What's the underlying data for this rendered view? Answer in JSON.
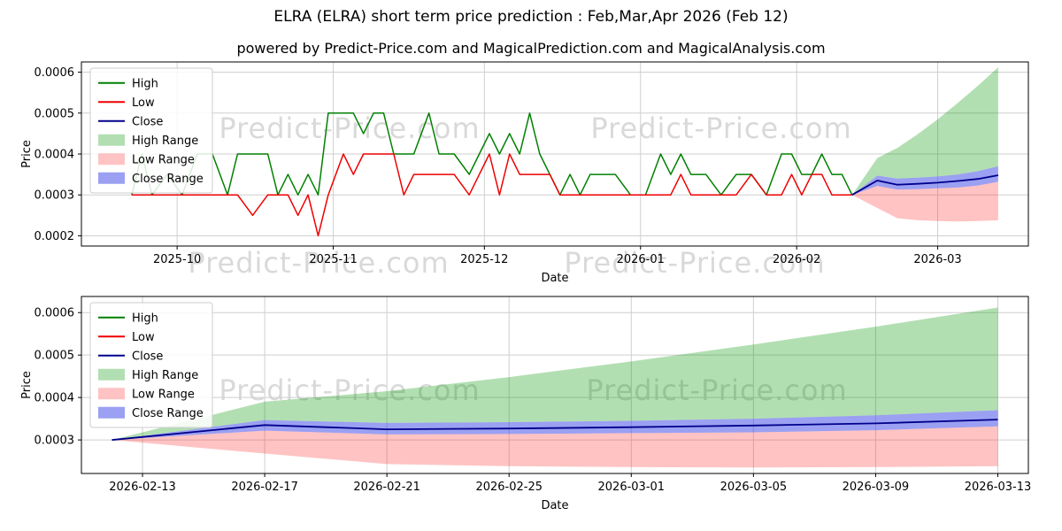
{
  "chart_data": {
    "type": "line",
    "title": "ELRA (ELRA) short term price prediction : Feb,Mar,Apr 2026 (Feb 12)",
    "subtitle": "powered by Predict-Price.com and MagicalPrediction.com and MagicalAnalysis.com",
    "watermark": "Predict-Price.com",
    "colors": {
      "high": "#008000",
      "low": "#ee0000",
      "close": "#00008b",
      "high_range": "rgba(0,150,0,0.30)",
      "low_range": "rgba(255,40,40,0.28)",
      "close_range": "rgba(55,65,230,0.50)",
      "grid": "#cfcfcf",
      "watermark": "rgba(128,128,128,0.30)"
    },
    "legend": [
      {
        "label": "High",
        "swatch": "line",
        "color_key": "high"
      },
      {
        "label": "Low",
        "swatch": "line",
        "color_key": "low"
      },
      {
        "label": "Close",
        "swatch": "line",
        "color_key": "close"
      },
      {
        "label": "High Range",
        "swatch": "patch",
        "color_key": "high_range"
      },
      {
        "label": "Low Range",
        "swatch": "patch",
        "color_key": "low_range"
      },
      {
        "label": "Close Range",
        "swatch": "patch",
        "color_key": "close_range"
      }
    ],
    "history": {
      "dates": [
        "2025-09-22",
        "2025-09-23",
        "2025-09-24",
        "2025-09-26",
        "2025-09-29",
        "2025-10-02",
        "2025-10-05",
        "2025-10-08",
        "2025-10-11",
        "2025-10-13",
        "2025-10-16",
        "2025-10-19",
        "2025-10-21",
        "2025-10-23",
        "2025-10-25",
        "2025-10-27",
        "2025-10-29",
        "2025-10-31",
        "2025-11-03",
        "2025-11-05",
        "2025-11-07",
        "2025-11-09",
        "2025-11-11",
        "2025-11-13",
        "2025-11-15",
        "2025-11-17",
        "2025-11-20",
        "2025-11-22",
        "2025-11-25",
        "2025-11-28",
        "2025-11-30",
        "2025-12-02",
        "2025-12-04",
        "2025-12-06",
        "2025-12-08",
        "2025-12-10",
        "2025-12-12",
        "2025-12-14",
        "2025-12-16",
        "2025-12-18",
        "2025-12-20",
        "2025-12-22",
        "2025-12-24",
        "2025-12-27",
        "2025-12-30",
        "2026-01-02",
        "2026-01-05",
        "2026-01-07",
        "2026-01-09",
        "2026-01-11",
        "2026-01-14",
        "2026-01-17",
        "2026-01-20",
        "2026-01-23",
        "2026-01-26",
        "2026-01-29",
        "2026-01-31",
        "2026-02-02",
        "2026-02-04",
        "2026-02-06",
        "2026-02-08",
        "2026-02-10",
        "2026-02-12"
      ],
      "high": [
        0.0003,
        0.00035,
        0.0004,
        0.0003,
        0.00035,
        0.0003,
        0.0004,
        0.0004,
        0.0003,
        0.0004,
        0.0004,
        0.0004,
        0.0003,
        0.00035,
        0.0003,
        0.00035,
        0.0003,
        0.0005,
        0.0005,
        0.0005,
        0.00045,
        0.0005,
        0.0005,
        0.0004,
        0.0004,
        0.0004,
        0.0005,
        0.0004,
        0.0004,
        0.00035,
        0.0004,
        0.00045,
        0.0004,
        0.00045,
        0.0004,
        0.0005,
        0.0004,
        0.00035,
        0.0003,
        0.00035,
        0.0003,
        0.00035,
        0.00035,
        0.00035,
        0.0003,
        0.0003,
        0.0004,
        0.00035,
        0.0004,
        0.00035,
        0.00035,
        0.0003,
        0.00035,
        0.00035,
        0.0003,
        0.0004,
        0.0004,
        0.00035,
        0.00035,
        0.0004,
        0.00035,
        0.00035,
        0.0003
      ],
      "low": [
        0.0003,
        0.0003,
        0.0003,
        0.0003,
        0.0003,
        0.0003,
        0.0003,
        0.0003,
        0.0003,
        0.0003,
        0.00025,
        0.0003,
        0.0003,
        0.0003,
        0.00025,
        0.0003,
        0.0002,
        0.0003,
        0.0004,
        0.00035,
        0.0004,
        0.0004,
        0.0004,
        0.0004,
        0.0003,
        0.00035,
        0.00035,
        0.00035,
        0.00035,
        0.0003,
        0.00035,
        0.0004,
        0.0003,
        0.0004,
        0.00035,
        0.00035,
        0.00035,
        0.00035,
        0.0003,
        0.0003,
        0.0003,
        0.0003,
        0.0003,
        0.0003,
        0.0003,
        0.0003,
        0.0003,
        0.0003,
        0.00035,
        0.0003,
        0.0003,
        0.0003,
        0.0003,
        0.00035,
        0.0003,
        0.0003,
        0.00035,
        0.0003,
        0.00035,
        0.00035,
        0.0003,
        0.0003,
        0.0003
      ]
    },
    "prediction": {
      "dates": [
        "2026-02-12",
        "2026-02-17",
        "2026-02-21",
        "2026-02-25",
        "2026-03-01",
        "2026-03-05",
        "2026-03-09",
        "2026-03-13"
      ],
      "close": [
        0.0003,
        0.000335,
        0.000325,
        0.000327,
        0.00033,
        0.000334,
        0.000339,
        0.000348
      ],
      "close_upper": [
        0.0003,
        0.000347,
        0.00034,
        0.000342,
        0.000345,
        0.00035,
        0.000358,
        0.00037
      ],
      "close_lower": [
        0.0003,
        0.000322,
        0.000313,
        0.000314,
        0.000316,
        0.000318,
        0.000323,
        0.000332
      ],
      "high_upper": [
        0.0003,
        0.00039,
        0.000415,
        0.000448,
        0.000485,
        0.000525,
        0.000567,
        0.000612
      ],
      "low_lower": [
        0.0003,
        0.000268,
        0.000243,
        0.000238,
        0.000236,
        0.000235,
        0.000236,
        0.000238
      ]
    },
    "top_chart": {
      "xlabel": "Date",
      "ylabel": "Price",
      "xlim": [
        "2025-09-12",
        "2026-03-19"
      ],
      "ylim": [
        0.000175,
        0.000625
      ],
      "xticks": [
        {
          "value": "2025-10-01",
          "label": "2025-10"
        },
        {
          "value": "2025-11-01",
          "label": "2025-11"
        },
        {
          "value": "2025-12-01",
          "label": "2025-12"
        },
        {
          "value": "2026-01-01",
          "label": "2026-01"
        },
        {
          "value": "2026-02-01",
          "label": "2026-02"
        },
        {
          "value": "2026-03-01",
          "label": "2026-03"
        }
      ],
      "yticks": [
        0.0002,
        0.0003,
        0.0004,
        0.0005,
        0.0006
      ]
    },
    "bottom_chart": {
      "xlabel": "Date",
      "ylabel": "Price",
      "xlim": [
        "2026-02-11",
        "2026-03-14"
      ],
      "ylim": [
        0.000221,
        0.000638
      ],
      "xticks": [
        {
          "value": "2026-02-13",
          "label": "2026-02-13"
        },
        {
          "value": "2026-02-17",
          "label": "2026-02-17"
        },
        {
          "value": "2026-02-21",
          "label": "2026-02-21"
        },
        {
          "value": "2026-02-25",
          "label": "2026-02-25"
        },
        {
          "value": "2026-03-01",
          "label": "2026-03-01"
        },
        {
          "value": "2026-03-05",
          "label": "2026-03-05"
        },
        {
          "value": "2026-03-09",
          "label": "2026-03-09"
        },
        {
          "value": "2026-03-13",
          "label": "2026-03-13"
        }
      ],
      "yticks": [
        0.0003,
        0.0004,
        0.0005,
        0.0006
      ]
    }
  }
}
